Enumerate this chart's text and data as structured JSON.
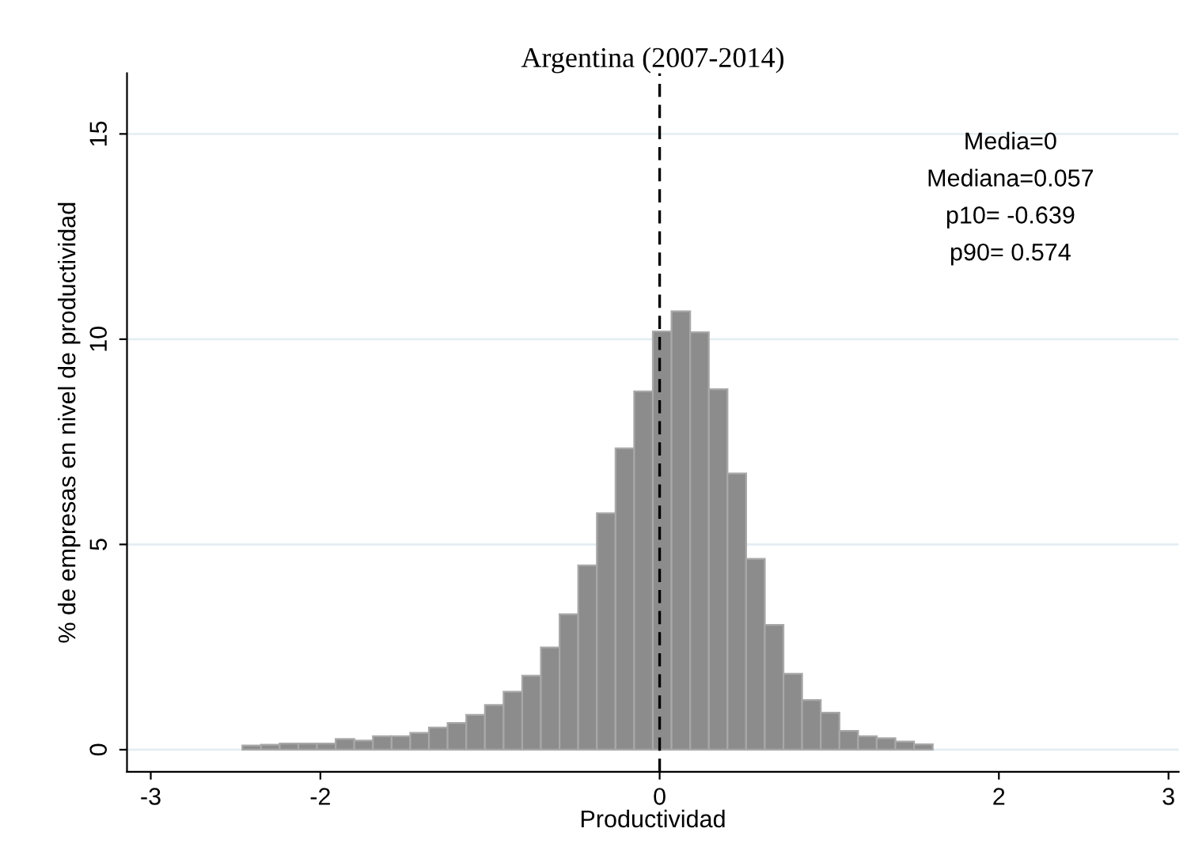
{
  "chart_data": {
    "type": "histogram",
    "title": "Argentina (2007-2014)",
    "xlabel": "Productividad",
    "ylabel": "% de empresas en nivel de productividad",
    "bins": [
      -2.46,
      -2.35,
      -2.24,
      -2.13,
      -2.02,
      -1.91,
      -1.8,
      -1.69,
      -1.58,
      -1.47,
      -1.36,
      -1.25,
      -1.14,
      -1.03,
      -0.92,
      -0.81,
      -0.7,
      -0.59,
      -0.48,
      -0.37,
      -0.26,
      -0.15,
      -0.04,
      0.07,
      0.18,
      0.29,
      0.4,
      0.51,
      0.62,
      0.73,
      0.84,
      0.95,
      1.06,
      1.17,
      1.28,
      1.39,
      1.5,
      1.61
    ],
    "values": [
      0.1,
      0.12,
      0.15,
      0.15,
      0.15,
      0.26,
      0.22,
      0.33,
      0.33,
      0.41,
      0.54,
      0.65,
      0.85,
      1.09,
      1.41,
      1.8,
      2.49,
      3.3,
      4.49,
      5.76,
      7.34,
      8.73,
      10.19,
      10.68,
      10.17,
      8.78,
      6.73,
      4.65,
      3.04,
      1.85,
      1.21,
      0.9,
      0.46,
      0.33,
      0.28,
      0.2,
      0.13
    ],
    "color": "#8c8c8c",
    "xlim": [
      -3.14,
      3.06
    ],
    "xticks": [
      -3,
      -2,
      0,
      2,
      3
    ],
    "ylim": [
      -0.54,
      16.48
    ],
    "yticks": [
      0,
      5,
      10,
      15
    ],
    "grid": "y",
    "ref_lines": [
      {
        "axis": "x",
        "value": 0,
        "color": "#000000",
        "line_style": "dashed"
      }
    ],
    "annotations": [
      "Media=0",
      "Mediana=0.057",
      "p10= -0.639",
      "p90= 0.574"
    ]
  }
}
